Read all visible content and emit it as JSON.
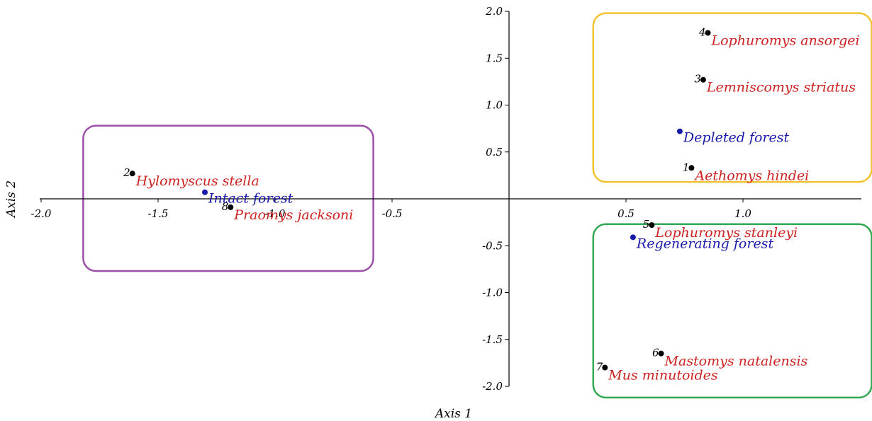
{
  "chart_data": {
    "type": "scatter",
    "xlabel": "Axis 1",
    "ylabel": "Axis 2",
    "xlim": [
      -2.0,
      1.5
    ],
    "ylim": [
      -2.0,
      2.0
    ],
    "x_ticks": [
      "-2.0",
      "-1.5",
      "-1.0",
      "-0.5",
      "0.5",
      "1.0"
    ],
    "y_ticks": [
      "2.0",
      "1.5",
      "1.0",
      "0.5",
      "-0.5",
      "-1.0",
      "-1.5",
      "-2.0"
    ],
    "species_color": "#cc2222",
    "habitat_color": "#1a1aaa",
    "species": [
      {
        "num": "1",
        "name": "Aethomys hindei",
        "x": 0.78,
        "y": 0.33
      },
      {
        "num": "2",
        "name": "Hylomyscus stella",
        "x": -1.61,
        "y": 0.27
      },
      {
        "num": "3",
        "name": "Lemniscomys striatus",
        "x": 0.83,
        "y": 1.27
      },
      {
        "num": "4",
        "name": "Lophuromys ansorgei",
        "x": 0.85,
        "y": 1.77
      },
      {
        "num": "5",
        "name": "Lophuromys stanleyi",
        "x": 0.61,
        "y": -0.28
      },
      {
        "num": "6",
        "name": "Mastomys natalensis",
        "x": 0.65,
        "y": -1.65
      },
      {
        "num": "7",
        "name": "Mus minutoides",
        "x": 0.41,
        "y": -1.8
      },
      {
        "num": "8",
        "name": "Praomys jacksoni",
        "x": -1.19,
        "y": -0.09
      }
    ],
    "habitats": [
      {
        "name": "Intact forest",
        "x": -1.3,
        "y": 0.07
      },
      {
        "name": "Depleted forest",
        "x": 0.73,
        "y": 0.72
      },
      {
        "name": "Regenerating forest",
        "x": 0.53,
        "y": -0.41
      }
    ],
    "groups": [
      {
        "color": "#f2c230",
        "x_range": [
          0.36,
          1.55
        ],
        "y_range": [
          0.18,
          1.98
        ]
      },
      {
        "color": "#9b4fa8",
        "x_range": [
          -1.82,
          -0.58
        ],
        "y_range": [
          -0.77,
          0.78
        ]
      },
      {
        "color": "#33a852",
        "x_range": [
          0.36,
          1.55
        ],
        "y_range": [
          -2.12,
          -0.27
        ]
      }
    ]
  }
}
